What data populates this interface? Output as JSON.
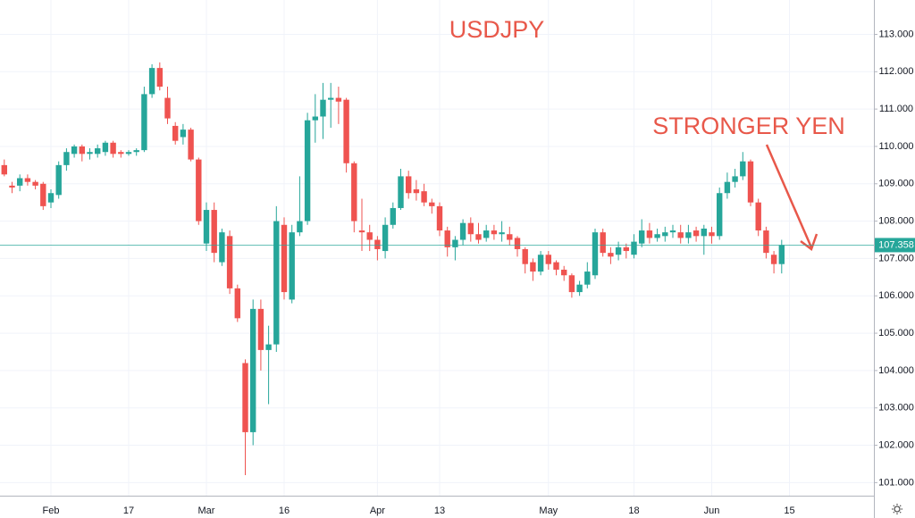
{
  "chart_data": {
    "type": "candlestick",
    "title": "USDJPY",
    "annotation": "STRONGER YEN",
    "categories": [
      null,
      null,
      null,
      null,
      null,
      null,
      "Feb",
      null,
      null,
      null,
      null,
      null,
      null,
      null,
      null,
      null,
      "17",
      null,
      null,
      null,
      null,
      null,
      null,
      null,
      null,
      null,
      "Mar",
      null,
      null,
      null,
      null,
      null,
      null,
      null,
      null,
      null,
      "16",
      null,
      null,
      null,
      null,
      null,
      null,
      null,
      null,
      null,
      null,
      null,
      "Apr",
      null,
      null,
      null,
      null,
      null,
      null,
      null,
      "13",
      null,
      null,
      null,
      null,
      null,
      null,
      null,
      null,
      null,
      null,
      null,
      null,
      null,
      "May",
      null,
      null,
      null,
      null,
      null,
      null,
      null,
      null,
      null,
      null,
      "18",
      null,
      null,
      null,
      null,
      null,
      null,
      null,
      null,
      null,
      "Jun",
      null,
      null,
      null,
      null,
      null,
      null,
      null,
      null,
      null,
      "15"
    ],
    "open": [
      109.5,
      108.95,
      108.95,
      109.15,
      109.05,
      109.0,
      108.5,
      108.7,
      109.5,
      109.8,
      110.0,
      109.8,
      109.8,
      109.85,
      110.1,
      109.85,
      109.8,
      109.85,
      109.9,
      111.4,
      112.1,
      111.3,
      110.55,
      110.25,
      110.45,
      109.65,
      107.4,
      108.3,
      106.9,
      107.6,
      106.2,
      104.2,
      102.35,
      105.65,
      104.55,
      104.7,
      107.9,
      105.9,
      107.7,
      108.0,
      110.7,
      110.8,
      111.25,
      111.3,
      111.25,
      109.55,
      107.75,
      107.7,
      107.5,
      107.2,
      107.9,
      108.35,
      109.2,
      108.85,
      108.8,
      108.5,
      108.4,
      107.75,
      107.3,
      107.5,
      107.95,
      107.65,
      107.55,
      107.75,
      107.65,
      107.65,
      107.55,
      107.25,
      106.9,
      106.65,
      107.1,
      106.9,
      106.7,
      106.55,
      106.1,
      106.3,
      106.55,
      107.7,
      107.15,
      107.1,
      107.3,
      107.1,
      107.4,
      107.75,
      107.55,
      107.6,
      107.7,
      107.7,
      107.55,
      107.75,
      107.6,
      107.7,
      107.6,
      108.75,
      109.05,
      109.2,
      109.6,
      108.5,
      107.75,
      107.1,
      106.85,
      null
    ],
    "high": [
      109.65,
      109.05,
      109.25,
      109.25,
      109.1,
      109.05,
      108.85,
      109.6,
      109.95,
      110.05,
      110.05,
      109.95,
      110.05,
      110.15,
      110.15,
      109.9,
      109.9,
      109.95,
      111.6,
      112.2,
      112.25,
      111.6,
      110.65,
      110.6,
      110.5,
      109.7,
      108.5,
      108.5,
      107.8,
      107.75,
      106.3,
      104.3,
      105.9,
      105.9,
      105.2,
      108.4,
      108.1,
      107.9,
      109.2,
      110.9,
      111.4,
      111.7,
      111.7,
      111.6,
      111.3,
      109.6,
      108.6,
      107.9,
      107.6,
      108.1,
      108.5,
      109.4,
      109.35,
      109.1,
      109.0,
      108.6,
      108.5,
      107.85,
      107.6,
      108.05,
      108.1,
      107.95,
      107.9,
      107.9,
      108.0,
      107.85,
      107.6,
      107.3,
      107.0,
      107.2,
      107.2,
      106.95,
      106.8,
      106.6,
      106.4,
      106.9,
      107.8,
      107.8,
      107.3,
      107.45,
      107.4,
      107.65,
      108.05,
      107.95,
      107.8,
      107.85,
      107.9,
      107.9,
      107.9,
      107.85,
      107.9,
      107.85,
      108.9,
      109.3,
      109.4,
      109.85,
      109.65,
      108.6,
      107.85,
      107.2,
      107.5,
      null
    ],
    "low": [
      109.2,
      108.75,
      108.8,
      108.95,
      108.85,
      108.3,
      108.35,
      108.6,
      109.35,
      109.7,
      109.6,
      109.65,
      109.7,
      109.75,
      109.7,
      109.7,
      109.75,
      109.75,
      109.85,
      111.3,
      111.5,
      110.6,
      110.05,
      110.05,
      109.6,
      107.9,
      107.2,
      106.9,
      106.8,
      106.05,
      105.3,
      101.2,
      102.0,
      104.0,
      103.1,
      104.5,
      105.9,
      105.8,
      107.6,
      107.9,
      110.1,
      110.2,
      110.5,
      110.6,
      109.3,
      107.7,
      107.2,
      107.2,
      106.95,
      107.0,
      107.8,
      108.3,
      108.6,
      108.55,
      108.4,
      108.2,
      107.6,
      107.05,
      106.95,
      107.35,
      107.45,
      107.4,
      107.45,
      107.5,
      107.45,
      107.35,
      107.05,
      106.6,
      106.4,
      106.55,
      106.7,
      106.55,
      106.4,
      105.95,
      106.0,
      106.2,
      106.45,
      107.05,
      106.85,
      106.95,
      107.0,
      107.0,
      107.3,
      107.4,
      107.45,
      107.45,
      107.55,
      107.4,
      107.4,
      107.45,
      107.1,
      107.4,
      107.5,
      108.6,
      108.9,
      109.1,
      108.4,
      107.6,
      107.0,
      106.6,
      106.6,
      null
    ],
    "close": [
      109.25,
      108.9,
      109.15,
      109.05,
      108.95,
      108.4,
      108.75,
      109.5,
      109.85,
      110.0,
      109.8,
      109.85,
      109.95,
      110.1,
      109.8,
      109.8,
      109.85,
      109.9,
      111.4,
      112.1,
      111.6,
      110.75,
      110.15,
      110.45,
      109.65,
      108.0,
      108.3,
      107.15,
      107.7,
      106.2,
      105.4,
      102.35,
      105.65,
      104.55,
      104.7,
      108.0,
      106.1,
      107.7,
      108.0,
      110.7,
      110.8,
      111.25,
      111.3,
      111.2,
      109.55,
      108.0,
      107.7,
      107.5,
      107.25,
      107.9,
      108.35,
      109.2,
      108.75,
      108.75,
      108.5,
      108.4,
      107.75,
      107.3,
      107.5,
      107.95,
      107.65,
      107.5,
      107.75,
      107.65,
      107.7,
      107.5,
      107.25,
      106.85,
      106.65,
      107.1,
      106.85,
      106.7,
      106.55,
      106.1,
      106.3,
      106.65,
      107.7,
      107.15,
      107.05,
      107.3,
      107.2,
      107.45,
      107.75,
      107.55,
      107.65,
      107.7,
      107.75,
      107.55,
      107.7,
      107.6,
      107.8,
      107.6,
      108.75,
      109.05,
      109.2,
      109.6,
      108.5,
      107.75,
      107.15,
      106.85,
      107.358,
      null
    ],
    "up_color": "#26a69a",
    "down_color": "#ef5350",
    "last_price": 107.358,
    "ylim": [
      100.65,
      113.92
    ],
    "yticks": [
      {
        "value": 101,
        "label": "101.000"
      },
      {
        "value": 102,
        "label": "102.000"
      },
      {
        "value": 103,
        "label": "103.000"
      },
      {
        "value": 104,
        "label": "104.000"
      },
      {
        "value": 105,
        "label": "105.000"
      },
      {
        "value": 106,
        "label": "106.000"
      },
      {
        "value": 107,
        "label": "107.000"
      },
      {
        "value": 108,
        "label": "108.000"
      },
      {
        "value": 109,
        "label": "109.000"
      },
      {
        "value": 110,
        "label": "110.000"
      },
      {
        "value": 111,
        "label": "111.000"
      },
      {
        "value": 112,
        "label": "112.000"
      },
      {
        "value": 113,
        "label": "113.000"
      }
    ],
    "grid": true
  }
}
